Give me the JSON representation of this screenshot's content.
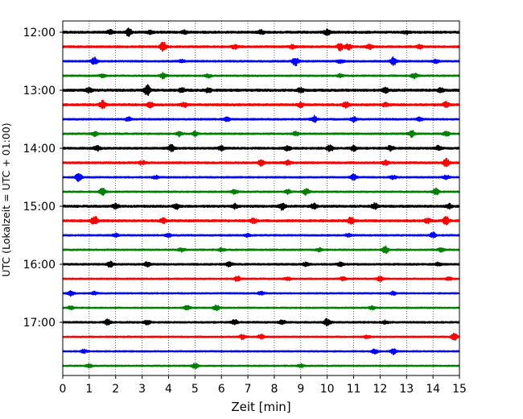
{
  "chart_data": {
    "type": "line",
    "title": "",
    "xlabel": "Zeit  [min]",
    "ylabel": "UTC (Lokalzeit = UTC + 01:00)",
    "xlim": [
      0,
      15
    ],
    "x_ticks": [
      0,
      1,
      2,
      3,
      4,
      5,
      6,
      7,
      8,
      9,
      10,
      11,
      12,
      13,
      14,
      15
    ],
    "x_tick_labels": [
      "0",
      "1",
      "2",
      "3",
      "4",
      "5",
      "6",
      "7",
      "8",
      "9",
      "10",
      "11",
      "12",
      "13",
      "14",
      "15"
    ],
    "y_tick_labels": [
      "12:00",
      "13:00",
      "14:00",
      "15:00",
      "16:00",
      "17:00"
    ],
    "y_tick_traces": [
      0,
      4,
      8,
      12,
      16,
      20
    ],
    "grid": "vertical-dotted",
    "trace_interval_min": 15,
    "colors": [
      "#000000",
      "#ff0000",
      "#0000ff",
      "#008000"
    ],
    "traces": [
      {
        "start": "12:00",
        "color": "#000000",
        "noise": 2.2,
        "events": [
          [
            1.8,
            2.5
          ],
          [
            2.5,
            4.5
          ],
          [
            3.3,
            2.0
          ],
          [
            4.6,
            2.0
          ],
          [
            7.5,
            2.5
          ],
          [
            10.0,
            3.0
          ],
          [
            13.0,
            2.0
          ]
        ]
      },
      {
        "start": "12:15",
        "color": "#ff0000",
        "noise": 2.0,
        "events": [
          [
            3.8,
            5.5
          ],
          [
            6.5,
            2.0
          ],
          [
            8.7,
            2.2
          ],
          [
            10.5,
            4.5
          ],
          [
            10.8,
            3.5
          ],
          [
            11.6,
            2.5
          ],
          [
            13.5,
            2.0
          ]
        ]
      },
      {
        "start": "12:30",
        "color": "#0000ff",
        "noise": 1.6,
        "events": [
          [
            1.2,
            4.5
          ],
          [
            4.5,
            1.8
          ],
          [
            8.8,
            5.0
          ],
          [
            10.5,
            2.0
          ],
          [
            12.5,
            4.5
          ],
          [
            14.1,
            2.0
          ]
        ]
      },
      {
        "start": "12:45",
        "color": "#008000",
        "noise": 1.5,
        "events": [
          [
            1.5,
            1.8
          ],
          [
            3.8,
            3.5
          ],
          [
            5.5,
            2.0
          ],
          [
            10.5,
            1.8
          ],
          [
            13.3,
            3.5
          ]
        ]
      },
      {
        "start": "13:00",
        "color": "#000000",
        "noise": 2.4,
        "events": [
          [
            1.0,
            2.5
          ],
          [
            3.2,
            6.5
          ],
          [
            4.5,
            3.0
          ],
          [
            5.5,
            2.2
          ],
          [
            9.0,
            2.5
          ],
          [
            12.2,
            3.0
          ],
          [
            14.3,
            2.5
          ]
        ]
      },
      {
        "start": "13:15",
        "color": "#ff0000",
        "noise": 2.2,
        "events": [
          [
            1.5,
            4.5
          ],
          [
            3.3,
            3.0
          ],
          [
            4.6,
            2.5
          ],
          [
            9.0,
            2.5
          ],
          [
            10.7,
            3.0
          ],
          [
            12.2,
            2.0
          ],
          [
            14.5,
            3.0
          ]
        ]
      },
      {
        "start": "13:30",
        "color": "#0000ff",
        "noise": 1.6,
        "events": [
          [
            2.5,
            2.5
          ],
          [
            6.2,
            2.5
          ],
          [
            9.5,
            4.0
          ],
          [
            11.0,
            3.0
          ],
          [
            13.5,
            2.0
          ]
        ]
      },
      {
        "start": "13:45",
        "color": "#008000",
        "noise": 1.6,
        "events": [
          [
            1.2,
            2.5
          ],
          [
            4.4,
            3.0
          ],
          [
            5.0,
            2.5
          ],
          [
            8.8,
            2.5
          ],
          [
            13.2,
            4.0
          ],
          [
            14.5,
            3.0
          ]
        ]
      },
      {
        "start": "14:00",
        "color": "#000000",
        "noise": 2.0,
        "events": [
          [
            1.3,
            3.0
          ],
          [
            4.1,
            4.0
          ],
          [
            6.0,
            2.5
          ],
          [
            8.5,
            2.5
          ],
          [
            10.1,
            4.0
          ],
          [
            11.0,
            3.0
          ],
          [
            12.4,
            3.0
          ],
          [
            14.2,
            2.5
          ]
        ]
      },
      {
        "start": "14:15",
        "color": "#ff0000",
        "noise": 2.0,
        "events": [
          [
            3.0,
            2.5
          ],
          [
            7.5,
            3.0
          ],
          [
            8.5,
            2.5
          ],
          [
            12.2,
            2.5
          ],
          [
            14.5,
            4.5
          ]
        ]
      },
      {
        "start": "14:30",
        "color": "#0000ff",
        "noise": 1.5,
        "events": [
          [
            0.6,
            5.0
          ],
          [
            3.5,
            2.0
          ],
          [
            11.0,
            3.5
          ],
          [
            12.5,
            2.0
          ],
          [
            14.5,
            2.5
          ]
        ]
      },
      {
        "start": "14:45",
        "color": "#008000",
        "noise": 1.5,
        "events": [
          [
            1.5,
            5.0
          ],
          [
            6.5,
            2.5
          ],
          [
            8.5,
            2.5
          ],
          [
            9.2,
            3.5
          ],
          [
            14.1,
            4.0
          ]
        ]
      },
      {
        "start": "15:00",
        "color": "#000000",
        "noise": 2.2,
        "events": [
          [
            2.0,
            2.5
          ],
          [
            4.3,
            3.0
          ],
          [
            6.5,
            2.5
          ],
          [
            8.3,
            4.0
          ],
          [
            9.5,
            3.0
          ],
          [
            11.8,
            4.0
          ],
          [
            14.6,
            2.5
          ]
        ]
      },
      {
        "start": "15:15",
        "color": "#ff0000",
        "noise": 2.2,
        "events": [
          [
            1.2,
            5.5
          ],
          [
            3.8,
            3.0
          ],
          [
            7.2,
            3.0
          ],
          [
            10.9,
            4.0
          ],
          [
            13.8,
            2.5
          ],
          [
            14.5,
            4.5
          ]
        ]
      },
      {
        "start": "15:30",
        "color": "#0000ff",
        "noise": 1.5,
        "events": [
          [
            2.0,
            2.0
          ],
          [
            4.0,
            2.0
          ],
          [
            7.0,
            2.0
          ],
          [
            10.8,
            2.0
          ],
          [
            14.0,
            3.5
          ]
        ]
      },
      {
        "start": "15:45",
        "color": "#008000",
        "noise": 1.5,
        "events": [
          [
            4.5,
            2.5
          ],
          [
            6.0,
            2.0
          ],
          [
            9.7,
            2.0
          ],
          [
            12.2,
            4.0
          ],
          [
            14.3,
            2.0
          ]
        ]
      },
      {
        "start": "16:00",
        "color": "#000000",
        "noise": 1.8,
        "events": [
          [
            1.8,
            3.5
          ],
          [
            3.2,
            2.5
          ],
          [
            6.3,
            2.5
          ],
          [
            9.2,
            2.0
          ],
          [
            10.5,
            2.0
          ],
          [
            14.2,
            2.0
          ]
        ]
      },
      {
        "start": "16:15",
        "color": "#ff0000",
        "noise": 1.4,
        "events": [
          [
            6.6,
            3.0
          ],
          [
            8.5,
            2.0
          ],
          [
            10.6,
            2.5
          ],
          [
            12.0,
            3.0
          ],
          [
            14.6,
            2.0
          ]
        ]
      },
      {
        "start": "16:30",
        "color": "#0000ff",
        "noise": 1.3,
        "events": [
          [
            0.3,
            3.0
          ],
          [
            1.2,
            2.0
          ],
          [
            7.5,
            2.0
          ],
          [
            12.5,
            2.0
          ]
        ]
      },
      {
        "start": "16:45",
        "color": "#008000",
        "noise": 1.3,
        "events": [
          [
            0.3,
            2.0
          ],
          [
            4.7,
            2.5
          ],
          [
            5.8,
            3.5
          ],
          [
            11.7,
            2.0
          ]
        ]
      },
      {
        "start": "17:00",
        "color": "#000000",
        "noise": 1.7,
        "events": [
          [
            1.7,
            3.0
          ],
          [
            3.2,
            2.5
          ],
          [
            6.5,
            3.0
          ],
          [
            8.3,
            2.5
          ],
          [
            10.0,
            4.5
          ],
          [
            12.2,
            2.0
          ]
        ]
      },
      {
        "start": "17:15",
        "color": "#ff0000",
        "noise": 1.4,
        "events": [
          [
            6.8,
            3.0
          ],
          [
            7.5,
            2.5
          ],
          [
            11.5,
            2.0
          ],
          [
            14.8,
            4.0
          ]
        ]
      },
      {
        "start": "17:30",
        "color": "#0000ff",
        "noise": 1.3,
        "events": [
          [
            0.8,
            2.0
          ],
          [
            11.8,
            3.0
          ],
          [
            12.5,
            3.5
          ]
        ]
      },
      {
        "start": "17:45",
        "color": "#008000",
        "noise": 1.3,
        "events": [
          [
            1.0,
            2.0
          ],
          [
            5.0,
            3.0
          ],
          [
            9.0,
            2.0
          ]
        ]
      }
    ]
  }
}
